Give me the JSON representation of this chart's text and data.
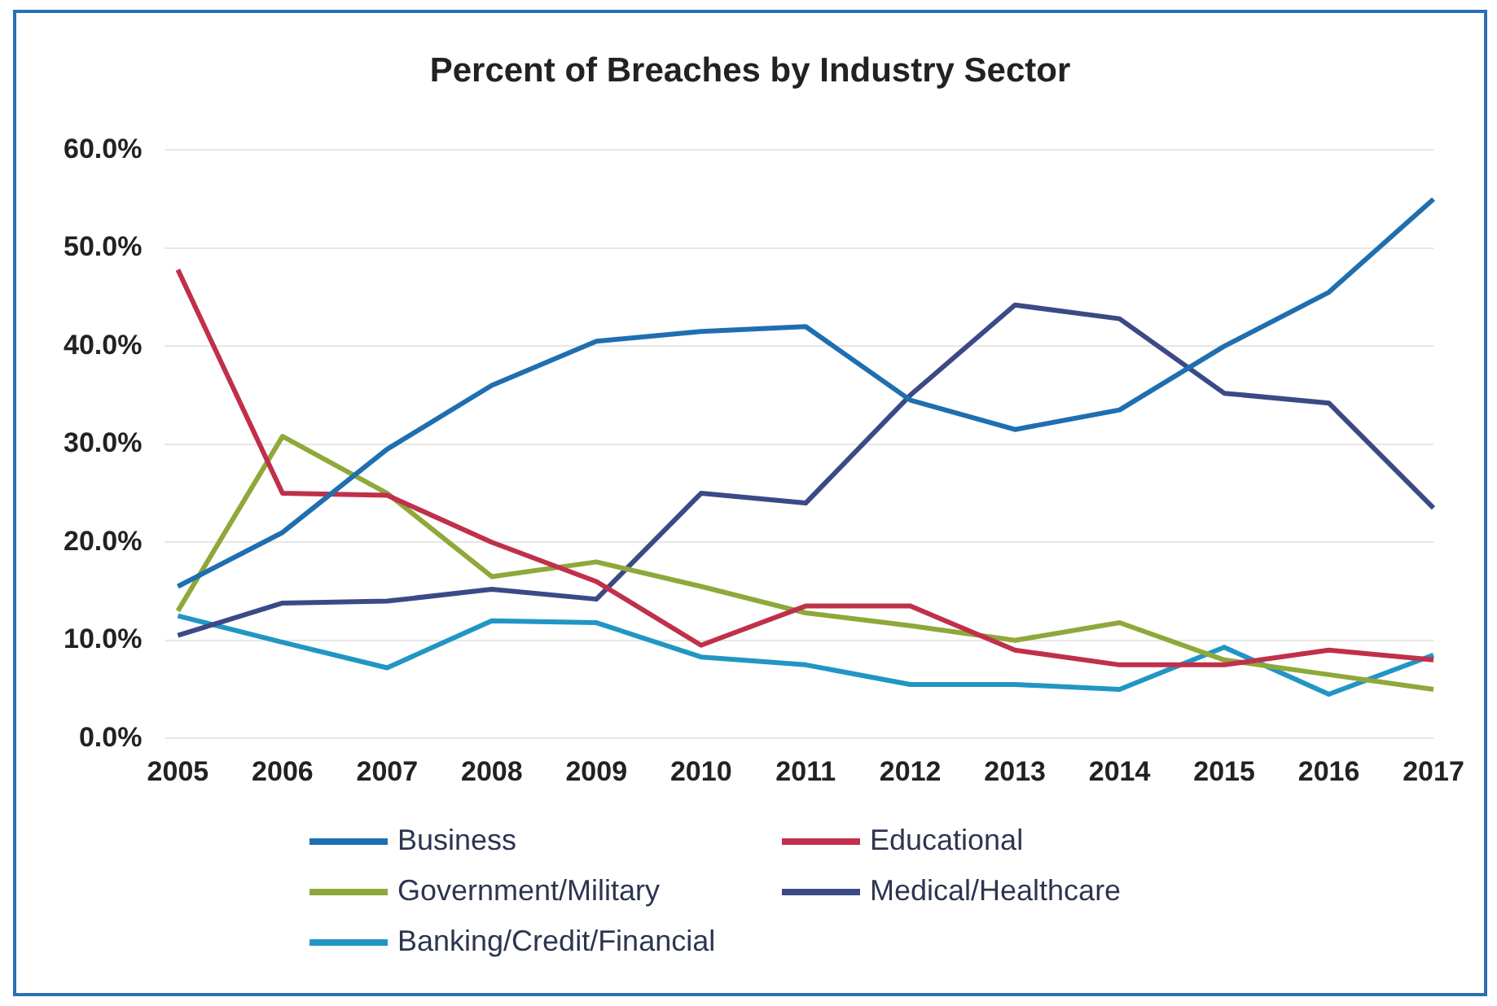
{
  "chart_data": {
    "type": "line",
    "title": "Percent of Breaches by Industry Sector",
    "categories": [
      "2005",
      "2006",
      "2007",
      "2008",
      "2009",
      "2010",
      "2011",
      "2012",
      "2013",
      "2014",
      "2015",
      "2016",
      "2017"
    ],
    "series": [
      {
        "name": "Business",
        "color": "#1f6fb0",
        "values": [
          15.5,
          21,
          29.5,
          36,
          40.5,
          41.5,
          42,
          34.5,
          31.5,
          33.5,
          40,
          45.5,
          55
        ]
      },
      {
        "name": "Educational",
        "color": "#c0304a",
        "values": [
          47.8,
          25,
          24.8,
          20,
          16,
          9.5,
          13.5,
          13.5,
          9,
          7.5,
          7.5,
          9,
          8
        ]
      },
      {
        "name": "Government/Military",
        "color": "#8fa83a",
        "values": [
          13,
          30.8,
          25,
          16.5,
          18,
          15.5,
          12.8,
          11.5,
          10,
          11.8,
          8,
          6.5,
          5
        ]
      },
      {
        "name": "Medical/Healthcare",
        "color": "#3b4a86",
        "values": [
          10.5,
          13.8,
          14,
          15.2,
          14.2,
          25,
          24,
          35,
          44.2,
          42.8,
          35.2,
          34.2,
          23.5
        ]
      },
      {
        "name": "Banking/Credit/Financial",
        "color": "#2196c4",
        "values": [
          12.5,
          9.8,
          7.2,
          12,
          11.8,
          8.3,
          7.5,
          5.5,
          5.5,
          5,
          9.3,
          4.5,
          8.5
        ]
      }
    ],
    "ylim": [
      0,
      60
    ],
    "yticks": [
      {
        "value": 0,
        "label": "0.0%"
      },
      {
        "value": 10,
        "label": "10.0%"
      },
      {
        "value": 20,
        "label": "20.0%"
      },
      {
        "value": 30,
        "label": "30.0%"
      },
      {
        "value": 40,
        "label": "40.0%"
      },
      {
        "value": 50,
        "label": "50.0%"
      },
      {
        "value": 60,
        "label": "60.0%"
      }
    ],
    "grid": "y",
    "legend": "bottom",
    "marker": "none",
    "line_style": "solid"
  }
}
